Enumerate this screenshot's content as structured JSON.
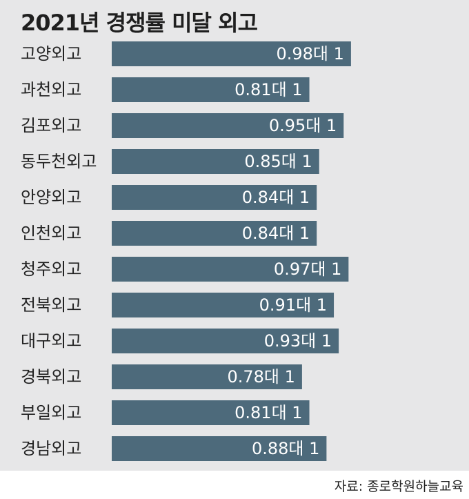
{
  "chart_data": {
    "type": "bar",
    "orientation": "horizontal",
    "title": "2021년 경쟁률 미달 외고",
    "categories": [
      "고양외고",
      "과천외고",
      "김포외고",
      "동두천외고",
      "안양외고",
      "인천외고",
      "청주외고",
      "전북외고",
      "대구외고",
      "경북외고",
      "부일외고",
      "경남외고"
    ],
    "values": [
      0.98,
      0.81,
      0.95,
      0.85,
      0.84,
      0.84,
      0.97,
      0.91,
      0.93,
      0.78,
      0.81,
      0.88
    ],
    "data_labels": [
      "0.98대 1",
      "0.81대 1",
      "0.95대 1",
      "0.85대 1",
      "0.84대 1",
      "0.84대 1",
      "0.97대 1",
      "0.91대 1",
      "0.93대 1",
      "0.78대 1",
      "0.81대 1",
      "0.88대 1"
    ],
    "bar_color": "#4d6a7b",
    "background_color": "#e7e7e8",
    "xlim": [
      0,
      1
    ],
    "grid": false,
    "legend": "none"
  },
  "source": "자료: 종로학원하늘교육"
}
